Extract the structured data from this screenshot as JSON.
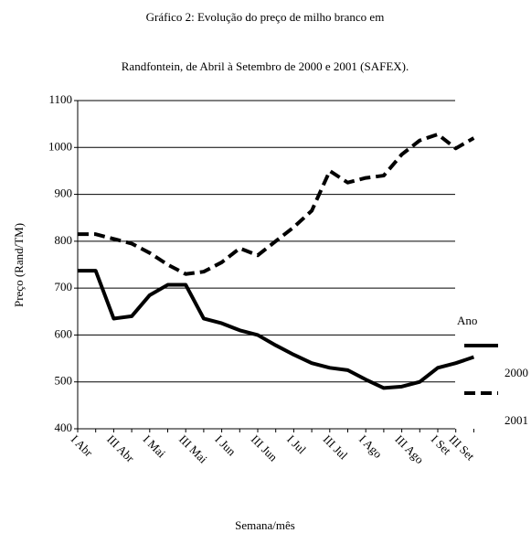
{
  "chart_data": {
    "type": "line",
    "title": "Gráfico 2: Evolução do preço de milho branco em",
    "subtitle": "Randfontein, de Abril à Setembro de 2000 e 2001 (SAFEX).",
    "x_label": "Semana/mês",
    "y_label": "Preço (Rand/TM)",
    "legend_title": "Ano",
    "categories": [
      "I Abr",
      null,
      "III Abr",
      null,
      "I Mai",
      null,
      "III Mai",
      null,
      "I Jun",
      null,
      "III Jun",
      null,
      "I Jul",
      null,
      "III Jul",
      null,
      "I Ago",
      null,
      "III Ago",
      null,
      "I Set",
      "III Set",
      null
    ],
    "series": [
      {
        "name": "2000",
        "color": "#000000",
        "dash": false,
        "values": [
          737,
          737,
          635,
          640,
          685,
          707,
          707,
          635,
          625,
          610,
          600,
          578,
          558,
          540,
          530,
          525,
          505,
          487,
          490,
          500,
          530,
          540,
          553
        ]
      },
      {
        "name": "2001",
        "color": "#000000",
        "dash": true,
        "values": [
          815,
          815,
          805,
          795,
          775,
          750,
          730,
          735,
          755,
          785,
          770,
          800,
          830,
          865,
          950,
          925,
          935,
          940,
          985,
          1015,
          1028,
          998,
          1020
        ]
      }
    ],
    "ylim": [
      400,
      1100
    ],
    "yticks": [
      400,
      500,
      600,
      700,
      800,
      900,
      1000,
      1100
    ],
    "grid": true
  }
}
